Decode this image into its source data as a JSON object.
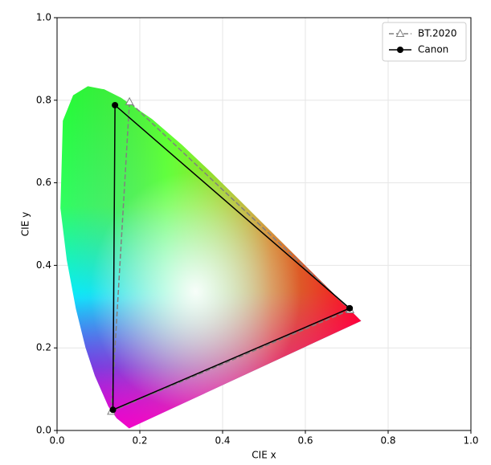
{
  "chart_data": {
    "type": "line",
    "x_label": "CIE x",
    "y_label": "CIE y",
    "xlim": [
      0,
      1
    ],
    "ylim": [
      0,
      1
    ],
    "xticks": [
      {
        "value": 0,
        "label": "0.0"
      },
      {
        "value": 0.2,
        "label": "0.2"
      },
      {
        "value": 0.4,
        "label": "0.4"
      },
      {
        "value": 0.6,
        "label": "0.6"
      },
      {
        "value": 0.8,
        "label": "0.8"
      },
      {
        "value": 1,
        "label": "1.0"
      }
    ],
    "yticks": [
      {
        "value": 0,
        "label": "0.0"
      },
      {
        "value": 0.2,
        "label": "0.2"
      },
      {
        "value": 0.4,
        "label": "0.4"
      },
      {
        "value": 0.6,
        "label": "0.6"
      },
      {
        "value": 0.8,
        "label": "0.8"
      },
      {
        "value": 1,
        "label": "1.0"
      }
    ],
    "grid": true,
    "legend": "upper right",
    "series": [
      {
        "name": "BT.2020",
        "color": "#808080",
        "linestyle": "dashed",
        "marker": "triangle",
        "x": [
          0.708,
          0.175,
          0.131,
          0.708
        ],
        "values": [
          0.292,
          0.796,
          0.046,
          0.292
        ]
      },
      {
        "name": "Canon",
        "color": "#000000",
        "linestyle": "solid",
        "marker": "circle",
        "x": [
          0.707,
          0.14,
          0.135,
          0.707
        ],
        "values": [
          0.296,
          0.788,
          0.05,
          0.296
        ]
      }
    ]
  }
}
